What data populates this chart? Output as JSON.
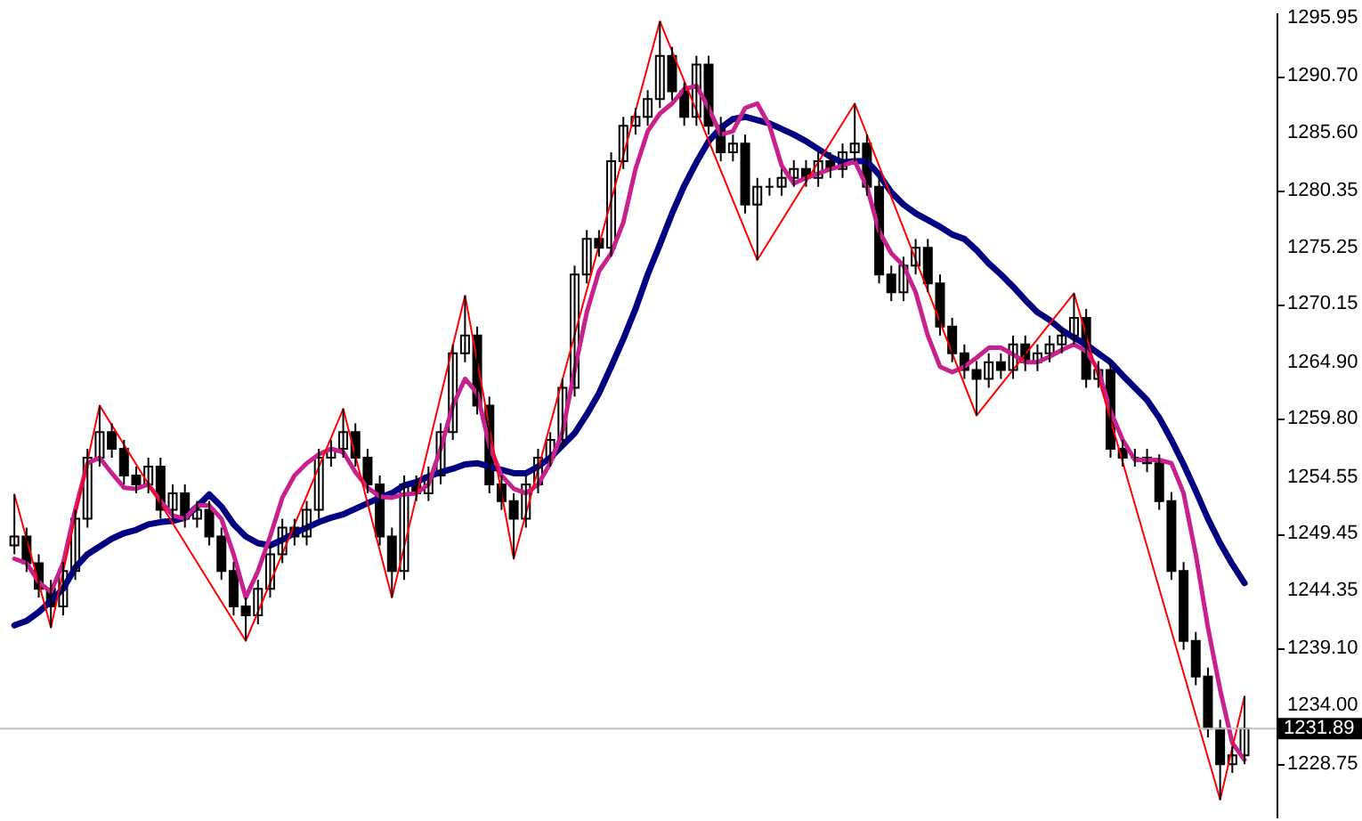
{
  "chart_data": {
    "type": "candlestick",
    "categories": [
      null,
      null,
      null,
      null,
      null,
      null,
      null,
      null,
      null,
      null,
      null,
      null,
      null,
      null,
      null,
      null,
      null,
      null,
      null,
      null,
      null,
      null,
      null,
      null,
      null,
      null,
      null,
      null,
      null,
      null,
      null,
      null,
      null,
      null,
      null,
      null,
      null,
      null,
      null,
      null,
      null,
      null,
      null,
      null,
      null,
      null,
      null,
      null,
      null,
      null,
      null,
      null,
      null,
      null,
      null,
      null,
      null,
      null,
      null,
      null,
      null,
      null,
      null,
      null,
      null,
      null,
      null,
      null,
      null,
      null,
      null,
      null,
      null,
      null,
      null,
      null,
      null,
      null,
      null,
      null,
      null,
      null,
      null,
      null,
      null,
      null,
      null,
      null,
      null,
      null,
      null,
      null,
      null,
      null,
      null,
      null,
      null,
      null,
      null,
      null,
      null,
      null
    ],
    "ohlc": [
      [
        1248.4,
        1253.0,
        1247.6,
        1249.2
      ],
      [
        1249.2,
        1250.0,
        1246.0,
        1246.8
      ],
      [
        1246.8,
        1247.6,
        1243.7,
        1244.5
      ],
      [
        1244.5,
        1245.3,
        1241.0,
        1242.9
      ],
      [
        1242.9,
        1246.9,
        1242.1,
        1246.1
      ],
      [
        1246.1,
        1251.6,
        1245.3,
        1250.8
      ],
      [
        1250.8,
        1257.1,
        1250.0,
        1256.3
      ],
      [
        1256.3,
        1261.0,
        1255.5,
        1258.6
      ],
      [
        1258.6,
        1259.4,
        1256.3,
        1257.1
      ],
      [
        1257.1,
        1257.9,
        1253.9,
        1254.7
      ],
      [
        1254.7,
        1255.5,
        1253.1,
        1253.9
      ],
      [
        1253.9,
        1256.3,
        1253.1,
        1255.5
      ],
      [
        1255.5,
        1256.3,
        1250.8,
        1251.6
      ],
      [
        1251.6,
        1253.9,
        1250.8,
        1253.1
      ],
      [
        1253.1,
        1253.9,
        1250.0,
        1250.8
      ],
      [
        1250.8,
        1252.4,
        1250.0,
        1251.6
      ],
      [
        1251.6,
        1252.4,
        1248.4,
        1249.2
      ],
      [
        1249.2,
        1250.0,
        1245.3,
        1246.1
      ],
      [
        1246.1,
        1246.9,
        1242.1,
        1242.9
      ],
      [
        1242.9,
        1243.7,
        1239.8,
        1242.1
      ],
      [
        1242.1,
        1245.3,
        1241.3,
        1244.5
      ],
      [
        1244.5,
        1248.4,
        1243.7,
        1247.6
      ],
      [
        1247.6,
        1250.8,
        1246.8,
        1250.0
      ],
      [
        1250.0,
        1250.8,
        1248.4,
        1249.2
      ],
      [
        1249.2,
        1252.4,
        1248.4,
        1251.6
      ],
      [
        1251.6,
        1257.1,
        1250.8,
        1256.3
      ],
      [
        1256.3,
        1257.9,
        1255.5,
        1257.1
      ],
      [
        1257.1,
        1260.7,
        1256.3,
        1258.6
      ],
      [
        1258.6,
        1259.4,
        1255.5,
        1256.3
      ],
      [
        1256.3,
        1257.1,
        1253.1,
        1253.9
      ],
      [
        1253.9,
        1254.7,
        1248.4,
        1249.2
      ],
      [
        1249.2,
        1250.0,
        1243.7,
        1246.1
      ],
      [
        1246.1,
        1254.7,
        1245.3,
        1253.9
      ],
      [
        1253.9,
        1254.7,
        1252.4,
        1253.1
      ],
      [
        1253.1,
        1255.5,
        1252.4,
        1254.7
      ],
      [
        1254.7,
        1259.4,
        1253.9,
        1258.6
      ],
      [
        1258.6,
        1266.5,
        1257.9,
        1265.7
      ],
      [
        1265.7,
        1270.9,
        1264.9,
        1267.3
      ],
      [
        1267.3,
        1268.1,
        1260.2,
        1261.0
      ],
      [
        1261.0,
        1261.8,
        1253.1,
        1253.9
      ],
      [
        1253.9,
        1254.7,
        1251.6,
        1252.4
      ],
      [
        1252.4,
        1253.1,
        1247.2,
        1250.8
      ],
      [
        1250.8,
        1254.7,
        1250.0,
        1253.9
      ],
      [
        1253.9,
        1257.1,
        1253.1,
        1256.3
      ],
      [
        1256.3,
        1258.6,
        1255.5,
        1257.9
      ],
      [
        1257.9,
        1263.4,
        1257.1,
        1262.6
      ],
      [
        1262.6,
        1273.6,
        1261.8,
        1272.8
      ],
      [
        1272.8,
        1276.8,
        1272.0,
        1276.0
      ],
      [
        1276.0,
        1276.8,
        1274.4,
        1275.2
      ],
      [
        1275.2,
        1283.8,
        1274.4,
        1283.0
      ],
      [
        1283.0,
        1287.0,
        1282.3,
        1286.2
      ],
      [
        1286.2,
        1287.8,
        1285.4,
        1287.0
      ],
      [
        1287.0,
        1289.4,
        1286.2,
        1288.6
      ],
      [
        1288.6,
        1295.6,
        1287.8,
        1292.5
      ],
      [
        1292.5,
        1293.3,
        1288.5,
        1289.3
      ],
      [
        1289.3,
        1290.1,
        1286.2,
        1287.0
      ],
      [
        1287.0,
        1292.5,
        1286.2,
        1291.7
      ],
      [
        1291.7,
        1292.5,
        1285.4,
        1286.2
      ],
      [
        1286.2,
        1287.0,
        1283.0,
        1283.8
      ],
      [
        1283.8,
        1285.4,
        1283.0,
        1284.6
      ],
      [
        1284.6,
        1285.4,
        1278.3,
        1279.1
      ],
      [
        1279.1,
        1281.5,
        1274.1,
        1280.7
      ],
      [
        1280.7,
        1281.5,
        1279.9,
        1280.7
      ],
      [
        1280.7,
        1282.3,
        1279.9,
        1281.5
      ],
      [
        1281.5,
        1283.1,
        1280.7,
        1282.3
      ],
      [
        1282.3,
        1283.1,
        1280.7,
        1281.5
      ],
      [
        1281.5,
        1283.8,
        1280.7,
        1283.0
      ],
      [
        1283.0,
        1283.8,
        1281.5,
        1282.3
      ],
      [
        1282.3,
        1284.6,
        1281.5,
        1283.8
      ],
      [
        1283.8,
        1288.2,
        1283.0,
        1284.6
      ],
      [
        1284.6,
        1285.4,
        1279.9,
        1280.7
      ],
      [
        1280.7,
        1281.5,
        1272.0,
        1272.8
      ],
      [
        1272.8,
        1273.6,
        1270.4,
        1271.2
      ],
      [
        1271.2,
        1274.4,
        1270.4,
        1273.6
      ],
      [
        1273.6,
        1276.0,
        1272.8,
        1275.2
      ],
      [
        1275.2,
        1276.0,
        1271.2,
        1272.0
      ],
      [
        1272.0,
        1272.8,
        1267.3,
        1268.1
      ],
      [
        1268.1,
        1268.9,
        1264.9,
        1265.7
      ],
      [
        1265.7,
        1266.5,
        1263.4,
        1264.2
      ],
      [
        1264.2,
        1265.0,
        1260.1,
        1263.4
      ],
      [
        1263.4,
        1265.7,
        1262.6,
        1264.9
      ],
      [
        1264.9,
        1265.7,
        1263.4,
        1264.2
      ],
      [
        1264.2,
        1267.3,
        1263.4,
        1266.5
      ],
      [
        1266.5,
        1267.3,
        1264.1,
        1264.9
      ],
      [
        1264.9,
        1266.5,
        1264.1,
        1265.7
      ],
      [
        1265.7,
        1267.3,
        1264.9,
        1266.5
      ],
      [
        1266.5,
        1268.1,
        1265.7,
        1267.3
      ],
      [
        1267.3,
        1271.1,
        1266.5,
        1268.9
      ],
      [
        1268.9,
        1269.7,
        1262.6,
        1263.4
      ],
      [
        1263.4,
        1265.0,
        1262.6,
        1264.2
      ],
      [
        1264.2,
        1265.0,
        1256.3,
        1257.1
      ],
      [
        1257.1,
        1257.9,
        1255.5,
        1256.3
      ],
      [
        1256.3,
        1257.1,
        1255.5,
        1256.3
      ],
      [
        1256.3,
        1257.1,
        1255.0,
        1255.8
      ],
      [
        1255.8,
        1256.6,
        1251.6,
        1252.4
      ],
      [
        1252.4,
        1253.2,
        1245.3,
        1246.1
      ],
      [
        1246.1,
        1246.9,
        1239.0,
        1239.8
      ],
      [
        1239.8,
        1240.6,
        1235.8,
        1236.6
      ],
      [
        1236.6,
        1237.4,
        1231.1,
        1231.9
      ],
      [
        1231.9,
        1232.7,
        1225.5,
        1228.7
      ],
      [
        1228.7,
        1230.3,
        1227.9,
        1229.5
      ],
      [
        1229.5,
        1234.8,
        1228.7,
        1231.89
      ]
    ],
    "series": [
      {
        "type": "line",
        "color": "#000080",
        "values": [
          1241.2,
          1241.6,
          1242.4,
          1243.4,
          1244.5,
          1246.4,
          1247.6,
          1248.3,
          1249.0,
          1249.5,
          1249.8,
          1250.3,
          1250.5,
          1250.6,
          1250.9,
          1251.9,
          1253.0,
          1251.9,
          1250.3,
          1249.2,
          1248.6,
          1248.4,
          1248.9,
          1249.5,
          1250.0,
          1250.5,
          1250.9,
          1251.2,
          1251.7,
          1252.2,
          1252.7,
          1253.1,
          1253.8,
          1254.1,
          1254.6,
          1255.0,
          1255.3,
          1255.7,
          1255.8,
          1255.5,
          1255.2,
          1254.9,
          1254.9,
          1255.5,
          1256.3,
          1257.4,
          1258.5,
          1260.2,
          1262.1,
          1264.5,
          1267.0,
          1269.7,
          1272.8,
          1275.5,
          1278.3,
          1280.8,
          1282.9,
          1284.8,
          1286.0,
          1286.8,
          1287.0,
          1286.7,
          1286.4,
          1285.9,
          1285.4,
          1284.8,
          1284.1,
          1283.4,
          1282.9,
          1283.0,
          1283.0,
          1281.8,
          1280.2,
          1279.1,
          1278.3,
          1277.7,
          1277.1,
          1276.4,
          1276.0,
          1275.0,
          1273.8,
          1272.8,
          1271.7,
          1270.5,
          1269.4,
          1268.7,
          1267.8,
          1267.1,
          1266.5,
          1265.7,
          1264.9,
          1263.7,
          1262.6,
          1261.5,
          1259.9,
          1257.9,
          1255.7,
          1253.3,
          1250.8,
          1248.6,
          1246.7,
          1245.0
        ]
      },
      {
        "type": "line",
        "color": "#c8208c",
        "values": [
          1247.2,
          1246.8,
          1245.1,
          1244.2,
          1246.8,
          1251.6,
          1255.8,
          1256.3,
          1254.9,
          1253.6,
          1253.5,
          1253.9,
          1252.4,
          1251.1,
          1250.8,
          1252.0,
          1252.0,
          1250.8,
          1247.6,
          1243.7,
          1246.1,
          1249.2,
          1252.7,
          1254.7,
          1255.8,
          1256.6,
          1257.1,
          1256.8,
          1255.0,
          1253.6,
          1252.8,
          1252.7,
          1253.0,
          1253.1,
          1253.9,
          1257.1,
          1261.0,
          1263.4,
          1262.1,
          1257.4,
          1254.7,
          1253.5,
          1253.1,
          1253.9,
          1255.8,
          1258.6,
          1264.2,
          1269.4,
          1273.1,
          1274.7,
          1277.5,
          1282.3,
          1285.7,
          1287.3,
          1288.2,
          1289.5,
          1289.8,
          1287.8,
          1285.4,
          1285.7,
          1287.8,
          1288.2,
          1286.2,
          1282.6,
          1281.0,
          1281.5,
          1281.9,
          1282.3,
          1282.6,
          1283.0,
          1280.7,
          1276.7,
          1274.7,
          1273.6,
          1271.2,
          1267.3,
          1264.5,
          1264.0,
          1264.5,
          1265.3,
          1266.2,
          1266.2,
          1265.6,
          1264.9,
          1264.9,
          1265.4,
          1266.0,
          1266.5,
          1265.9,
          1264.2,
          1260.5,
          1257.9,
          1256.1,
          1256.1,
          1256.1,
          1255.8,
          1253.1,
          1247.6,
          1241.0,
          1235.4,
          1230.6,
          1229.1
        ]
      },
      {
        "type": "line",
        "color": "#ff0000",
        "values": [
          1253.0,
          null,
          null,
          1241.0,
          null,
          null,
          null,
          1261.0,
          null,
          null,
          null,
          null,
          null,
          null,
          null,
          null,
          null,
          null,
          null,
          1239.8,
          null,
          null,
          null,
          null,
          null,
          null,
          null,
          1260.7,
          null,
          null,
          null,
          1243.7,
          null,
          null,
          null,
          null,
          null,
          1270.9,
          null,
          null,
          null,
          1247.2,
          null,
          null,
          null,
          null,
          null,
          null,
          null,
          null,
          null,
          null,
          null,
          1295.6,
          null,
          null,
          null,
          null,
          null,
          null,
          null,
          1274.1,
          null,
          null,
          null,
          null,
          null,
          null,
          null,
          1288.2,
          null,
          null,
          null,
          null,
          null,
          null,
          null,
          null,
          null,
          1260.1,
          null,
          null,
          null,
          null,
          null,
          null,
          null,
          1271.1,
          null,
          null,
          null,
          null,
          null,
          null,
          null,
          null,
          null,
          null,
          null,
          1225.5,
          null,
          1234.8
        ]
      }
    ],
    "ylim": [
      1223.9,
      1296.4
    ],
    "yticks": [
      {
        "value": 1228.75,
        "label": "1228.75"
      },
      {
        "value": 1234,
        "label": "1234.00"
      },
      {
        "value": 1239.1,
        "label": "1239.10"
      },
      {
        "value": 1244.35,
        "label": "1244.35"
      },
      {
        "value": 1249.45,
        "label": "1249.45"
      },
      {
        "value": 1254.55,
        "label": "1254.55"
      },
      {
        "value": 1259.8,
        "label": "1259.80"
      },
      {
        "value": 1264.9,
        "label": "1264.90"
      },
      {
        "value": 1270.15,
        "label": "1270.15"
      },
      {
        "value": 1275.25,
        "label": "1275.25"
      },
      {
        "value": 1280.35,
        "label": "1280.35"
      },
      {
        "value": 1285.6,
        "label": "1285.60"
      },
      {
        "value": 1290.7,
        "label": "1290.70"
      },
      {
        "value": 1295.95,
        "label": "1295.95"
      }
    ],
    "ref_lines": [
      {
        "axis": "y",
        "value": 1231.89,
        "label": "1231.89",
        "color": "#c0c0c0"
      }
    ],
    "tick_labels": "y"
  }
}
